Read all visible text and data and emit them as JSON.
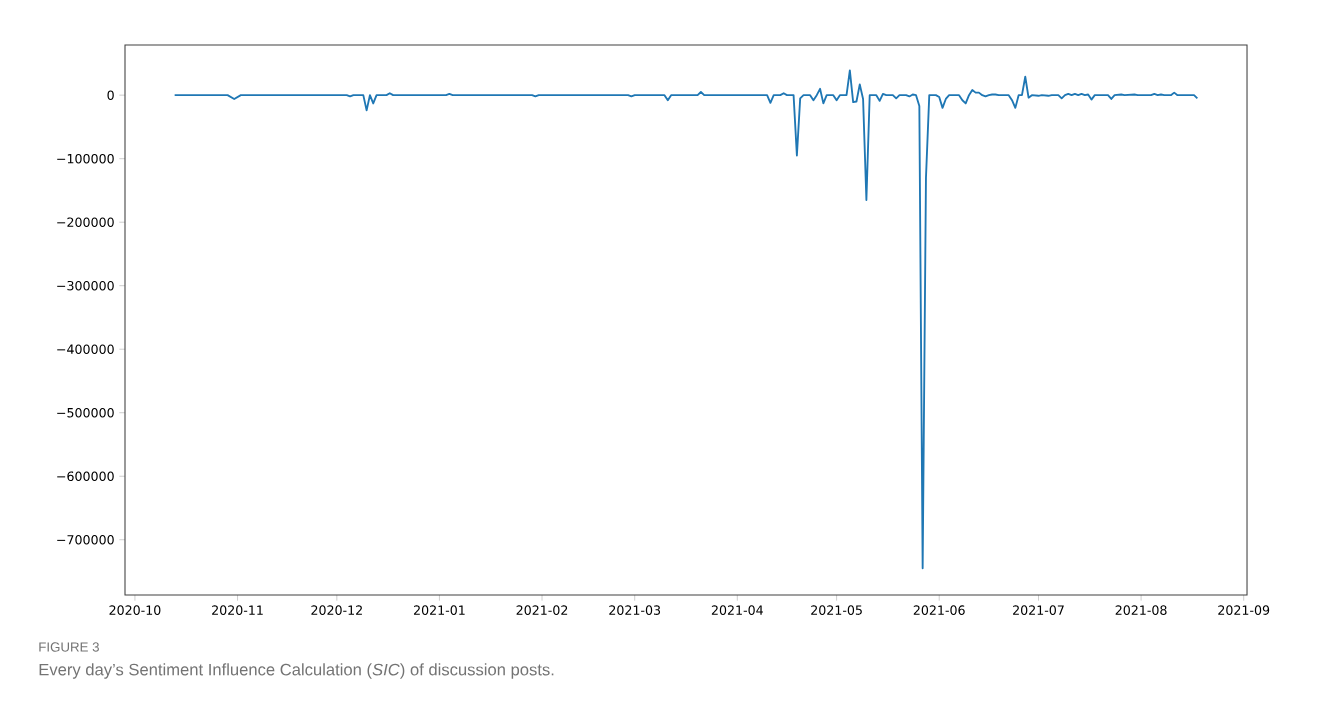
{
  "chart_data": {
    "type": "line",
    "annotations": [
      "FIGURE 3",
      "Every day’s Sentiment Influence Calculation (*SIC*) of discussion posts."
    ],
    "x": [
      "2020-10-13",
      "2020-10-29",
      "2020-10-31",
      "2020-11-02",
      "2020-12-04",
      "2020-12-05",
      "2020-12-06",
      "2020-12-09",
      "2020-12-10",
      "2020-12-11",
      "2020-12-12",
      "2020-12-13",
      "2020-12-16",
      "2020-12-17",
      "2020-12-18",
      "2021-01-03",
      "2021-01-04",
      "2021-01-05",
      "2021-01-29",
      "2021-01-30",
      "2021-01-31",
      "2021-02-27",
      "2021-02-28",
      "2021-03-01",
      "2021-03-10",
      "2021-03-11",
      "2021-03-12",
      "2021-03-20",
      "2021-03-21",
      "2021-03-22",
      "2021-04-10",
      "2021-04-11",
      "2021-04-12",
      "2021-04-14",
      "2021-04-15",
      "2021-04-16",
      "2021-04-18",
      "2021-04-19",
      "2021-04-20",
      "2021-04-21",
      "2021-04-23",
      "2021-04-24",
      "2021-04-25",
      "2021-04-26",
      "2021-04-27",
      "2021-04-28",
      "2021-04-30",
      "2021-05-01",
      "2021-05-02",
      "2021-05-04",
      "2021-05-05",
      "2021-05-06",
      "2021-05-07",
      "2021-05-08",
      "2021-05-09",
      "2021-05-10",
      "2021-05-11",
      "2021-05-13",
      "2021-05-14",
      "2021-05-15",
      "2021-05-16",
      "2021-05-18",
      "2021-05-19",
      "2021-05-20",
      "2021-05-22",
      "2021-05-23",
      "2021-05-24",
      "2021-05-25",
      "2021-05-26",
      "2021-05-27",
      "2021-05-28",
      "2021-05-29",
      "2021-05-31",
      "2021-06-01",
      "2021-06-02",
      "2021-06-03",
      "2021-06-04",
      "2021-06-07",
      "2021-06-08",
      "2021-06-09",
      "2021-06-10",
      "2021-06-11",
      "2021-06-12",
      "2021-06-13",
      "2021-06-14",
      "2021-06-15",
      "2021-06-16",
      "2021-06-17",
      "2021-06-18",
      "2021-06-19",
      "2021-06-22",
      "2021-06-23",
      "2021-06-24",
      "2021-06-25",
      "2021-06-26",
      "2021-06-27",
      "2021-06-28",
      "2021-06-29",
      "2021-07-01",
      "2021-07-02",
      "2021-07-04",
      "2021-07-05",
      "2021-07-07",
      "2021-07-08",
      "2021-07-09",
      "2021-07-10",
      "2021-07-11",
      "2021-07-12",
      "2021-07-13",
      "2021-07-14",
      "2021-07-15",
      "2021-07-16",
      "2021-07-17",
      "2021-07-18",
      "2021-07-22",
      "2021-07-23",
      "2021-07-24",
      "2021-07-26",
      "2021-07-27",
      "2021-07-30",
      "2021-07-31",
      "2021-08-04",
      "2021-08-05",
      "2021-08-06",
      "2021-08-07",
      "2021-08-08",
      "2021-08-10",
      "2021-08-11",
      "2021-08-12",
      "2021-08-17",
      "2021-08-18"
    ],
    "series": [
      {
        "color": "#1f77b4",
        "values": [
          0,
          0,
          -6000,
          0,
          0,
          -2000,
          0,
          0,
          -24000,
          0,
          -13000,
          0,
          0,
          3000,
          0,
          0,
          2000,
          0,
          0,
          -2000,
          0,
          0,
          -2000,
          0,
          0,
          -8000,
          0,
          0,
          5000,
          0,
          0,
          -12000,
          0,
          0,
          3000,
          0,
          0,
          -95000,
          -5000,
          0,
          0,
          -8000,
          0,
          10000,
          -13000,
          0,
          0,
          -8000,
          0,
          0,
          39000,
          -11000,
          -10000,
          17000,
          -6000,
          -165000,
          0,
          0,
          -9000,
          2000,
          0,
          0,
          -5000,
          0,
          0,
          -2000,
          1000,
          0,
          -17000,
          -745000,
          -130000,
          0,
          0,
          -3000,
          -20000,
          -6000,
          0,
          0,
          -8000,
          -13000,
          0,
          8000,
          4000,
          4000,
          0,
          -2000,
          0,
          1000,
          1000,
          0,
          0,
          -8000,
          -20000,
          0,
          0,
          29000,
          -4000,
          0,
          -1000,
          0,
          -1000,
          0,
          0,
          -5000,
          0,
          2000,
          0,
          2000,
          0,
          2000,
          0,
          1000,
          -7000,
          0,
          0,
          -6000,
          0,
          1000,
          0,
          1000,
          0,
          0,
          2000,
          0,
          1000,
          0,
          0,
          4000,
          0,
          0,
          -5000
        ]
      }
    ],
    "xlim": [
      "2020-09-28",
      "2021-09-02"
    ],
    "ylim": [
      -787000,
      79000
    ],
    "xticks": [
      "2020-10",
      "2020-11",
      "2020-12",
      "2021-01",
      "2021-02",
      "2021-03",
      "2021-04",
      "2021-05",
      "2021-06",
      "2021-07",
      "2021-08",
      "2021-09"
    ],
    "yticks": [
      0,
      {
        "value": -100000,
        "label": "−100000"
      },
      {
        "value": -200000,
        "label": "−200000"
      },
      {
        "value": -300000,
        "label": "−300000"
      },
      {
        "value": -400000,
        "label": "−400000"
      },
      {
        "value": -500000,
        "label": "−500000"
      },
      {
        "value": -600000,
        "label": "−600000"
      },
      {
        "value": -700000,
        "label": "−700000"
      }
    ],
    "grid": false
  }
}
